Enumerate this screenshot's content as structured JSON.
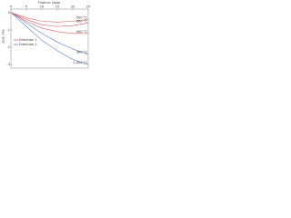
{
  "chart_data": {
    "type": "line",
    "x_label": "Fluence (dpa)",
    "y_label": "ΔL/L (%)",
    "x": [
      0,
      5,
      10,
      15,
      20,
      25
    ],
    "series": [
      {
        "name": "500 °C",
        "color": "#e06060",
        "values": [
          0,
          -0.3,
          -0.5,
          -0.55,
          -0.5,
          -0.4
        ]
      },
      {
        "name": "600 °C",
        "color": "#e06060",
        "values": [
          0,
          -0.4,
          -0.7,
          -0.8,
          -0.75,
          -0.6
        ]
      },
      {
        "name": "400 °C",
        "color": "#e06060",
        "values": [
          0,
          -0.5,
          -0.9,
          -1.1,
          -1.2,
          -1.2
        ]
      },
      {
        "name": "300 °C",
        "color": "#5b7fd6",
        "values": [
          0,
          -0.6,
          -1.2,
          -1.7,
          -2.1,
          -2.4
        ]
      },
      {
        "name": "1,000 °C",
        "color": "#5b7fd6",
        "values": [
          0,
          -0.8,
          -1.6,
          -2.2,
          -2.7,
          -3.0
        ]
      }
    ],
    "legend": [
      {
        "label": "Direction 1",
        "color": "#e06060"
      },
      {
        "label": "Direction 2",
        "color": "#5b7fd6"
      }
    ],
    "xlim": [
      0,
      25
    ],
    "xticks": [
      0,
      5,
      10,
      15,
      20,
      25
    ],
    "ylim": [
      -3.2,
      0.2
    ],
    "yticks": [
      0,
      -1,
      -2,
      -3
    ]
  }
}
